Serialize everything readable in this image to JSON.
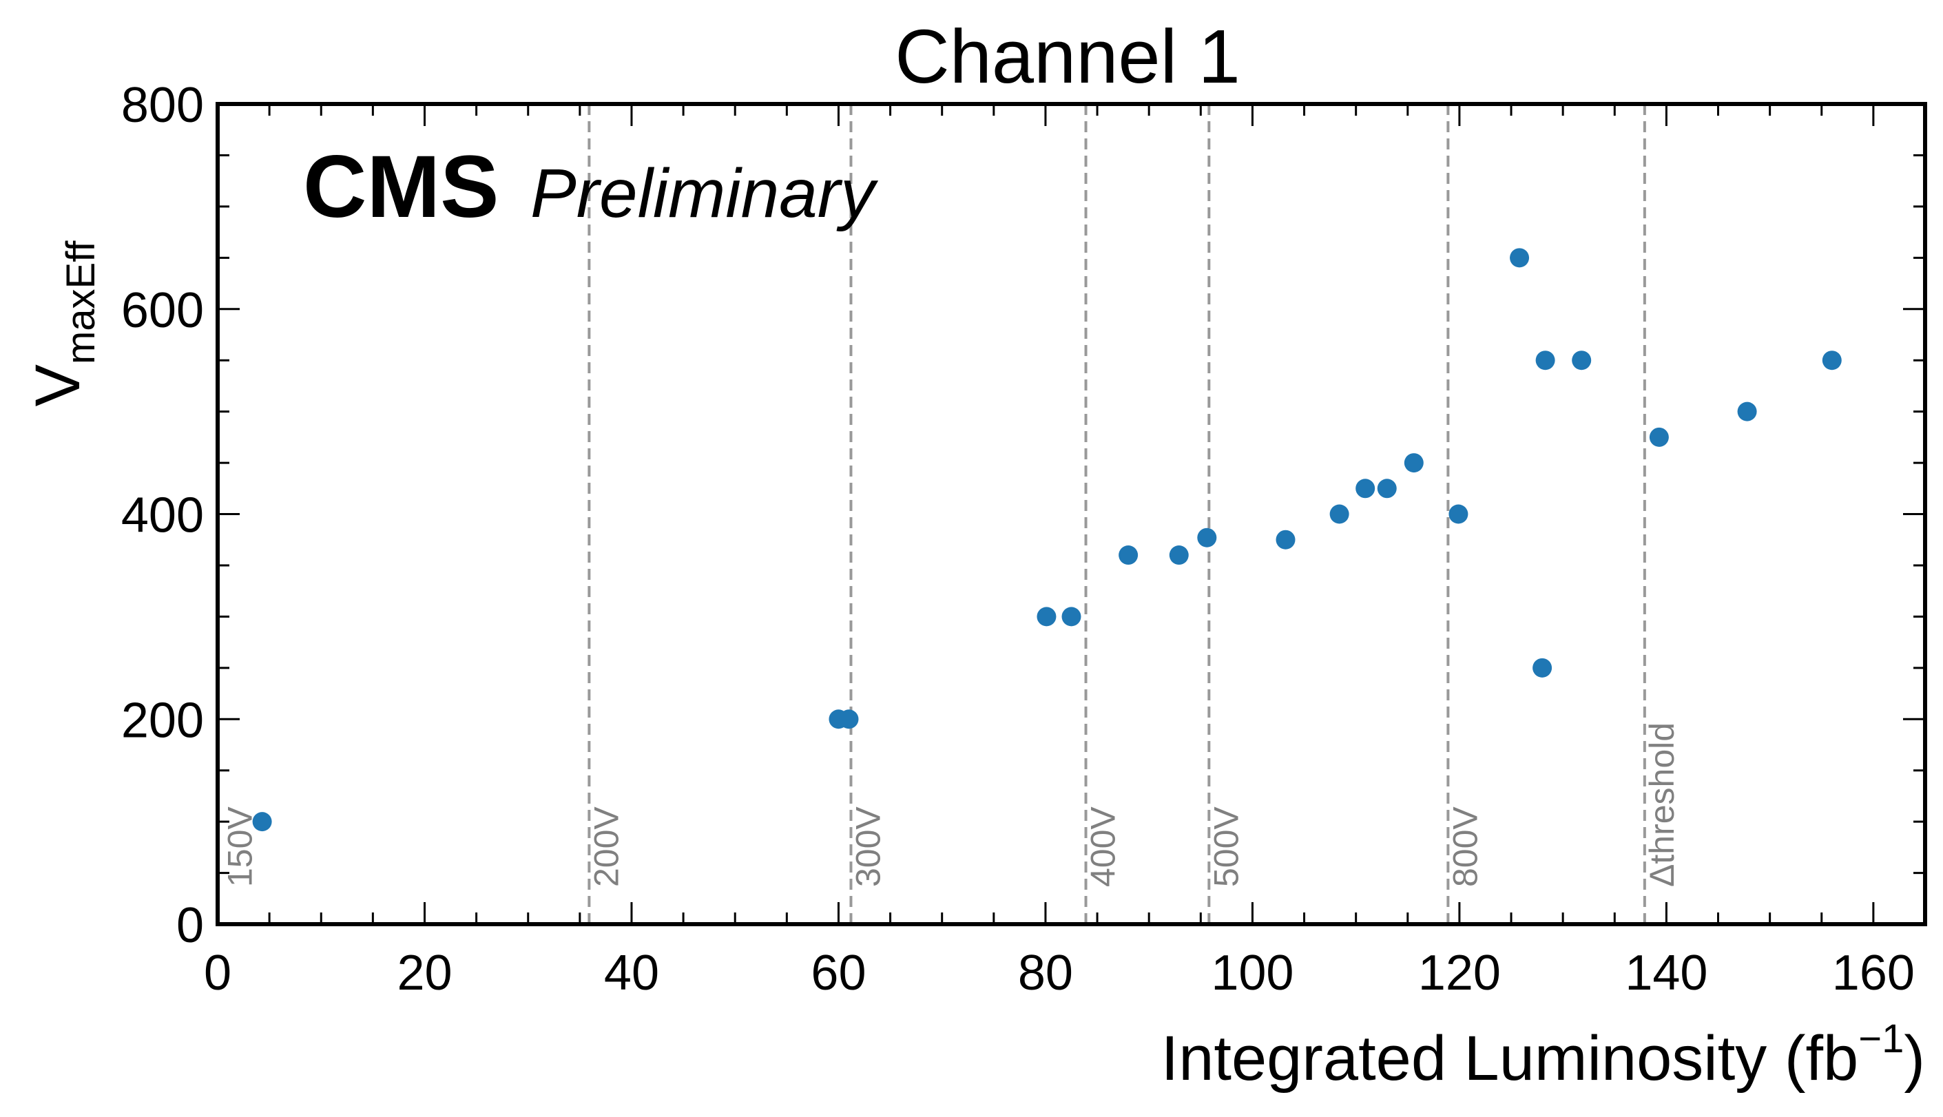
{
  "chart_data": {
    "type": "scatter",
    "title": "Channel 1",
    "xlabel": "Integrated Luminosity (fb",
    "xlabel_sup": "−1",
    "xlabel_close": ")",
    "ylabel_main": "V",
    "ylabel_sub": "maxEff",
    "experiment": "CMS",
    "status": "Preliminary",
    "xlim": [
      0,
      165
    ],
    "ylim": [
      0,
      800
    ],
    "xticks": [
      0,
      20,
      40,
      60,
      80,
      100,
      120,
      140,
      160
    ],
    "yticks": [
      0,
      200,
      400,
      600,
      800
    ],
    "xminor_step": 5,
    "yminor_step": 50,
    "grid": false,
    "marker_color": "#1f77b4",
    "vline_color": "#999999",
    "vline_label_color": "#808080",
    "vlines": [
      {
        "x": 0.5,
        "label": "150V",
        "draw_line": false
      },
      {
        "x": 35.9,
        "label": "200V",
        "draw_line": true
      },
      {
        "x": 61.2,
        "label": "300V",
        "draw_line": true
      },
      {
        "x": 83.9,
        "label": "400V",
        "draw_line": true
      },
      {
        "x": 95.8,
        "label": "500V",
        "draw_line": true
      },
      {
        "x": 118.9,
        "label": "800V",
        "draw_line": true
      },
      {
        "x": 137.9,
        "label": "Δthreshold",
        "draw_line": true
      }
    ],
    "series": [
      {
        "points": [
          {
            "x": 4.3,
            "y": 100
          },
          {
            "x": 60.0,
            "y": 200
          },
          {
            "x": 61.0,
            "y": 200
          },
          {
            "x": 80.1,
            "y": 300
          },
          {
            "x": 82.5,
            "y": 300
          },
          {
            "x": 88.0,
            "y": 360
          },
          {
            "x": 92.9,
            "y": 360
          },
          {
            "x": 95.6,
            "y": 377
          },
          {
            "x": 103.2,
            "y": 375
          },
          {
            "x": 108.4,
            "y": 400
          },
          {
            "x": 110.9,
            "y": 425
          },
          {
            "x": 113.0,
            "y": 425
          },
          {
            "x": 115.6,
            "y": 450
          },
          {
            "x": 119.9,
            "y": 400
          },
          {
            "x": 125.8,
            "y": 650
          },
          {
            "x": 128.0,
            "y": 250
          },
          {
            "x": 128.3,
            "y": 550
          },
          {
            "x": 131.8,
            "y": 550
          },
          {
            "x": 139.3,
            "y": 475
          },
          {
            "x": 147.8,
            "y": 500
          },
          {
            "x": 156.0,
            "y": 550
          }
        ]
      }
    ]
  }
}
